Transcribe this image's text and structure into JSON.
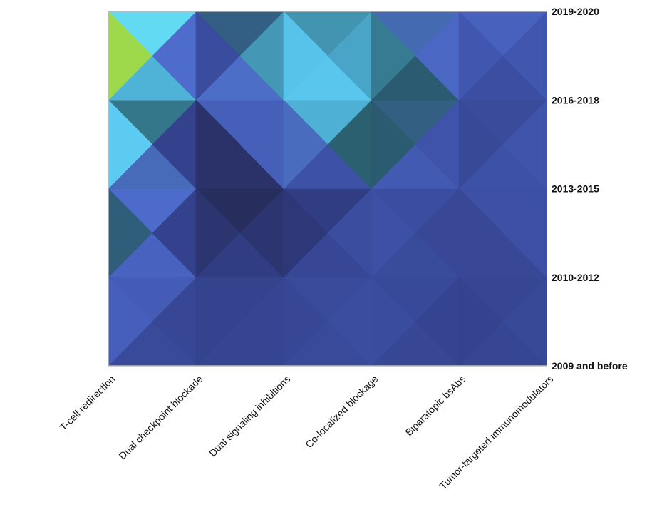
{
  "chart_data": {
    "type": "heatmap",
    "style": "filled contour over a categorical grid",
    "title": "",
    "xlabel": "",
    "ylabel": "",
    "x_categories": [
      "T-cell redirection",
      "Dual checkpoint blockade",
      "Dual signaling inhibitions",
      "Co-localized blockage",
      "Biparatopic bsAbs",
      "Tumor-targeted immunomodulators"
    ],
    "y_categories": [
      "2009 and before",
      "2010-2012",
      "2013-2015",
      "2016-2018",
      "2019-2020"
    ],
    "z_values": [
      [
        0.1,
        0.08,
        0.1,
        0.1,
        0.08,
        0.1
      ],
      [
        0.22,
        0.08,
        0.08,
        0.12,
        0.08,
        0.1
      ],
      [
        0.35,
        0.0,
        0.0,
        0.12,
        0.1,
        0.14
      ],
      [
        0.62,
        0.0,
        0.35,
        0.45,
        0.08,
        0.12
      ],
      [
        0.95,
        0.1,
        0.4,
        0.2,
        0.18,
        0.14
      ]
    ],
    "zlim": [
      0,
      1
    ],
    "colorscale": [
      [
        0.0,
        "#252a55"
      ],
      [
        0.06,
        "#2f3a7e"
      ],
      [
        0.12,
        "#3e52a8"
      ],
      [
        0.18,
        "#5070d0"
      ],
      [
        0.26,
        "#275966"
      ],
      [
        0.36,
        "#56c1ea"
      ],
      [
        0.48,
        "#66ddff"
      ],
      [
        0.55,
        "#4cc4a0"
      ],
      [
        0.66,
        "#9ddb4c"
      ],
      [
        0.8,
        "#f07f22"
      ],
      [
        1.0,
        "#ee7722"
      ]
    ],
    "legend": "none",
    "grid": false,
    "axis_color": "#bbbbbb"
  }
}
